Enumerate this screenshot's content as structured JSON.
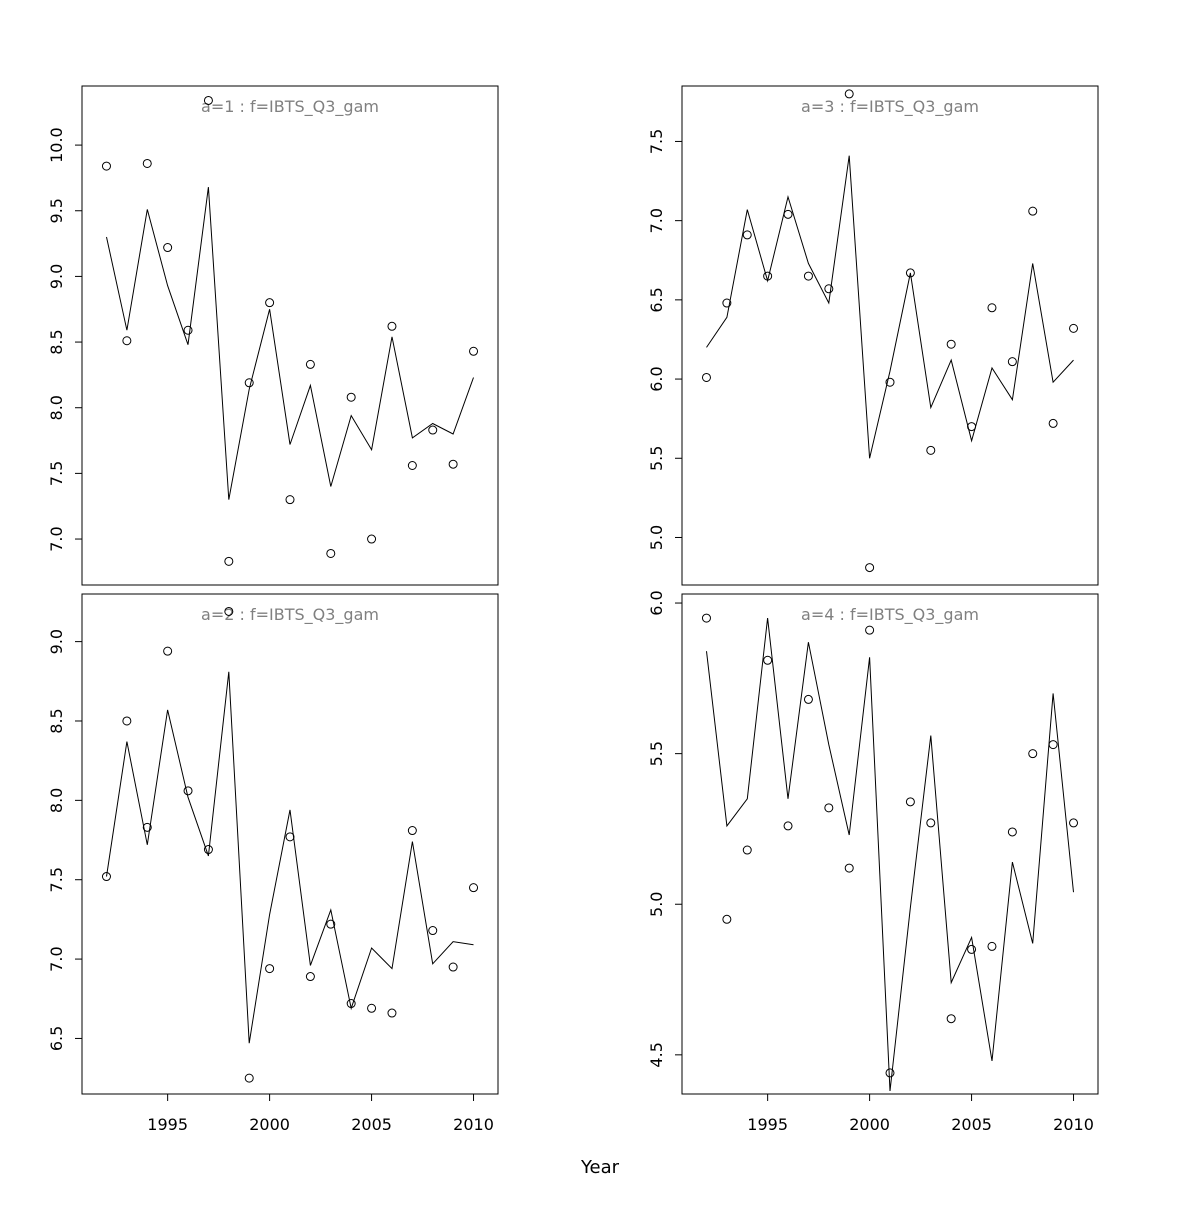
{
  "figure": {
    "xlabel": "Year"
  },
  "chart_data": [
    {
      "type": "scatter",
      "title": "a=1  :  f=IBTS_Q3_gam",
      "xlabel": "",
      "ylabel": "",
      "xlim": [
        1990.8,
        2011.2
      ],
      "ylim": [
        6.65,
        10.45
      ],
      "x_ticks": [],
      "y_ticks": [
        7.0,
        7.5,
        8.0,
        8.5,
        9.0,
        9.5,
        10.0
      ],
      "grid": false,
      "x": [
        1992,
        1993,
        1994,
        1995,
        1996,
        1997,
        1998,
        1999,
        2000,
        2001,
        2002,
        2003,
        2004,
        2005,
        2006,
        2007,
        2008,
        2009,
        2010
      ],
      "series": [
        {
          "kind": "points",
          "values": [
            9.84,
            8.51,
            9.86,
            9.22,
            8.59,
            10.34,
            6.83,
            8.19,
            8.8,
            7.3,
            8.33,
            6.89,
            8.08,
            7.0,
            8.62,
            7.56,
            7.83,
            7.57,
            8.43
          ]
        },
        {
          "kind": "line",
          "values": [
            9.3,
            8.59,
            9.51,
            8.93,
            8.48,
            9.68,
            7.3,
            8.14,
            8.75,
            7.72,
            8.17,
            7.4,
            7.94,
            7.68,
            8.54,
            7.77,
            7.88,
            7.8,
            8.23
          ]
        }
      ]
    },
    {
      "type": "scatter",
      "title": "a=3  :  f=IBTS_Q3_gam",
      "xlabel": "",
      "ylabel": "",
      "xlim": [
        1990.8,
        2011.2
      ],
      "ylim": [
        4.7,
        7.85
      ],
      "x_ticks": [],
      "y_ticks": [
        5.0,
        5.5,
        6.0,
        6.5,
        7.0,
        7.5
      ],
      "grid": false,
      "x": [
        1992,
        1993,
        1994,
        1995,
        1996,
        1997,
        1998,
        1999,
        2000,
        2001,
        2002,
        2003,
        2004,
        2005,
        2006,
        2007,
        2008,
        2009,
        2010
      ],
      "series": [
        {
          "kind": "points",
          "values": [
            6.01,
            6.48,
            6.91,
            6.65,
            7.04,
            6.65,
            6.57,
            7.8,
            4.81,
            5.98,
            6.67,
            5.55,
            6.22,
            5.7,
            6.45,
            6.11,
            7.06,
            5.72,
            6.32
          ]
        },
        {
          "kind": "line",
          "values": [
            6.2,
            6.39,
            7.07,
            6.62,
            7.15,
            6.73,
            6.48,
            7.41,
            5.5,
            6.05,
            6.67,
            5.82,
            6.12,
            5.61,
            6.07,
            5.87,
            6.73,
            5.98,
            6.12
          ]
        }
      ]
    },
    {
      "type": "scatter",
      "title": "a=2  :  f=IBTS_Q3_gam",
      "xlabel": "Year",
      "ylabel": "",
      "xlim": [
        1990.8,
        2011.2
      ],
      "ylim": [
        6.15,
        9.3
      ],
      "x_ticks": [
        1995,
        2000,
        2005,
        2010
      ],
      "y_ticks": [
        6.5,
        7.0,
        7.5,
        8.0,
        8.5,
        9.0
      ],
      "grid": false,
      "x": [
        1992,
        1993,
        1994,
        1995,
        1996,
        1997,
        1998,
        1999,
        2000,
        2001,
        2002,
        2003,
        2004,
        2005,
        2006,
        2007,
        2008,
        2009,
        2010
      ],
      "series": [
        {
          "kind": "points",
          "values": [
            7.52,
            8.5,
            7.83,
            8.94,
            8.06,
            7.69,
            9.19,
            6.25,
            6.94,
            7.77,
            6.89,
            7.22,
            6.72,
            6.69,
            6.66,
            7.81,
            7.18,
            6.95,
            7.45
          ]
        },
        {
          "kind": "line",
          "values": [
            7.52,
            8.37,
            7.72,
            8.57,
            8.02,
            7.65,
            8.81,
            6.47,
            7.28,
            7.94,
            6.96,
            7.31,
            6.69,
            7.07,
            6.94,
            7.74,
            6.97,
            7.11,
            7.09
          ]
        }
      ]
    },
    {
      "type": "scatter",
      "title": "a=4  :  f=IBTS_Q3_gam",
      "xlabel": "Year",
      "ylabel": "",
      "xlim": [
        1990.8,
        2011.2
      ],
      "ylim": [
        4.37,
        6.03
      ],
      "x_ticks": [
        1995,
        2000,
        2005,
        2010
      ],
      "y_ticks": [
        4.5,
        5.0,
        5.5,
        6.0
      ],
      "grid": false,
      "x": [
        1992,
        1993,
        1994,
        1995,
        1996,
        1997,
        1998,
        1999,
        2000,
        2001,
        2002,
        2003,
        2004,
        2005,
        2006,
        2007,
        2008,
        2009,
        2010
      ],
      "series": [
        {
          "kind": "points",
          "values": [
            5.95,
            4.95,
            5.18,
            5.81,
            5.26,
            5.68,
            5.32,
            5.12,
            5.91,
            4.44,
            5.34,
            5.27,
            4.62,
            4.85,
            4.86,
            5.24,
            5.5,
            5.53,
            5.27
          ]
        },
        {
          "kind": "line",
          "values": [
            5.84,
            5.26,
            5.35,
            5.95,
            5.35,
            5.87,
            5.53,
            5.23,
            5.82,
            4.38,
            4.99,
            5.56,
            4.74,
            4.89,
            4.48,
            5.14,
            4.87,
            5.7,
            5.04
          ]
        }
      ]
    }
  ]
}
